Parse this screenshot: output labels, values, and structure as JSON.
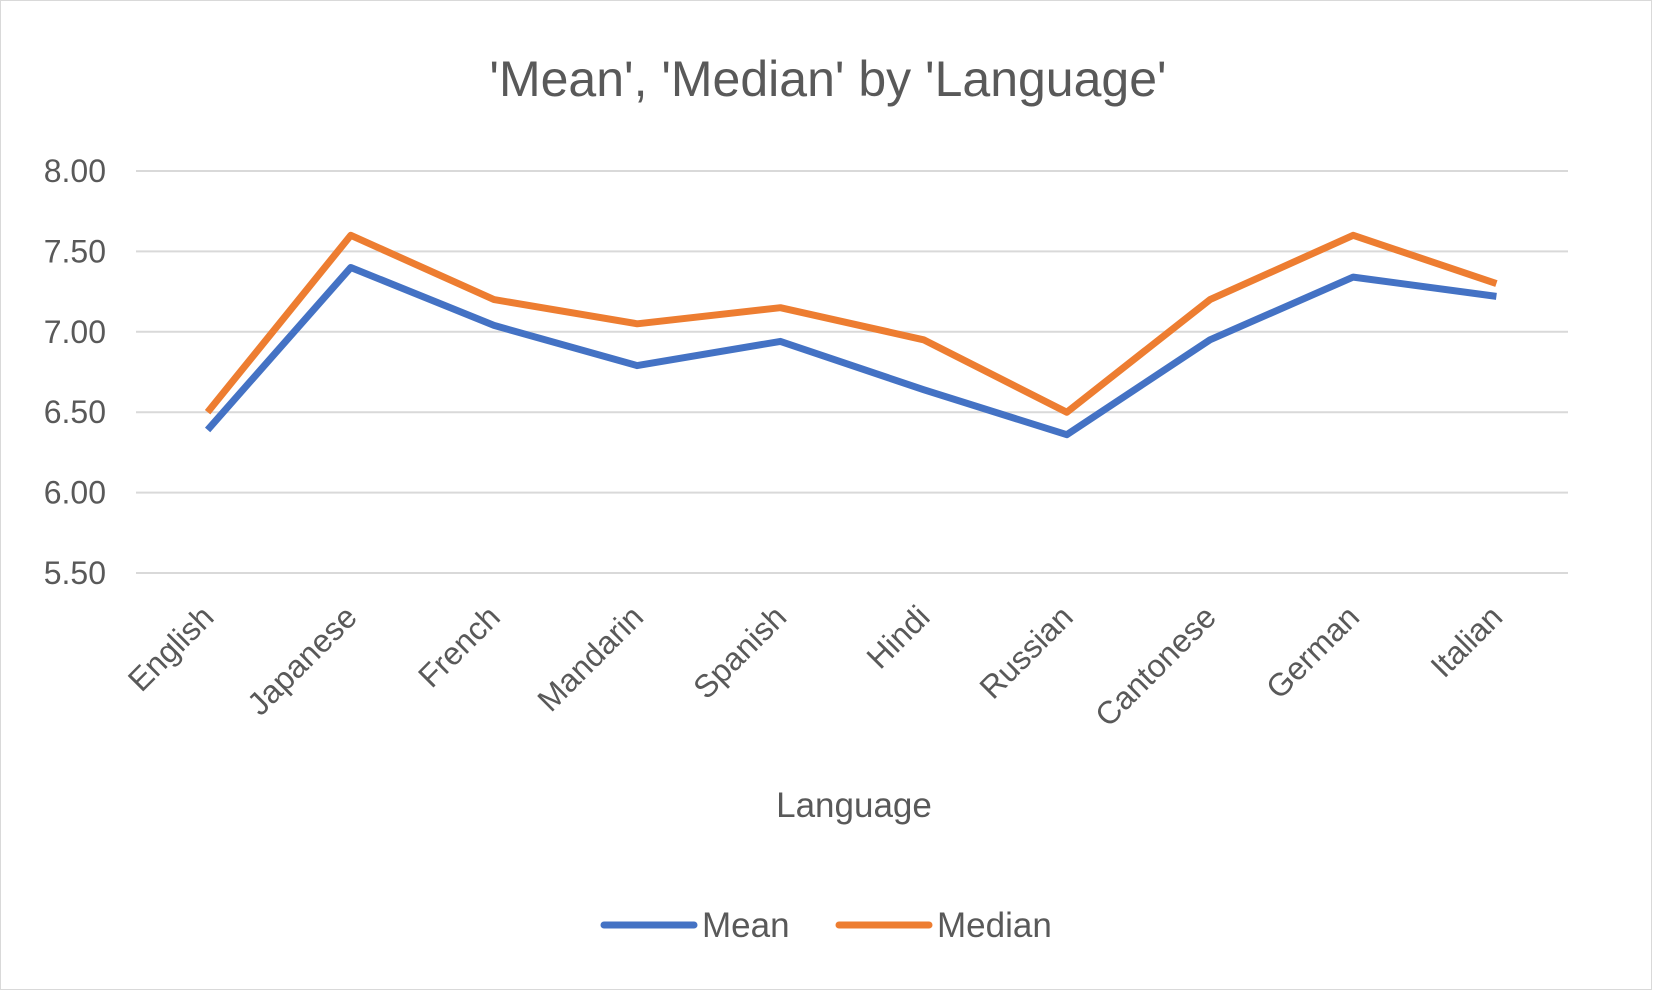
{
  "chart_data": {
    "type": "line",
    "title": "'Mean', 'Median' by 'Language'",
    "xlabel": "Language",
    "ylabel": "",
    "categories": [
      "English",
      "Japanese",
      "French",
      "Mandarin",
      "Spanish",
      "Hindi",
      "Russian",
      "Cantonese",
      "German",
      "Italian"
    ],
    "series": [
      {
        "name": "Mean",
        "color": "#4472C4",
        "values": [
          6.39,
          7.4,
          7.04,
          6.79,
          6.94,
          6.64,
          6.36,
          6.95,
          7.34,
          7.22
        ]
      },
      {
        "name": "Median",
        "color": "#ED7D31",
        "values": [
          6.5,
          7.6,
          7.2,
          7.05,
          7.15,
          6.95,
          6.5,
          7.2,
          7.6,
          7.3
        ]
      }
    ],
    "ylim": [
      5.5,
      8.0
    ],
    "yticks": [
      "5.50",
      "6.00",
      "6.50",
      "7.00",
      "7.50",
      "8.00"
    ],
    "grid": true,
    "legend_position": "bottom"
  }
}
